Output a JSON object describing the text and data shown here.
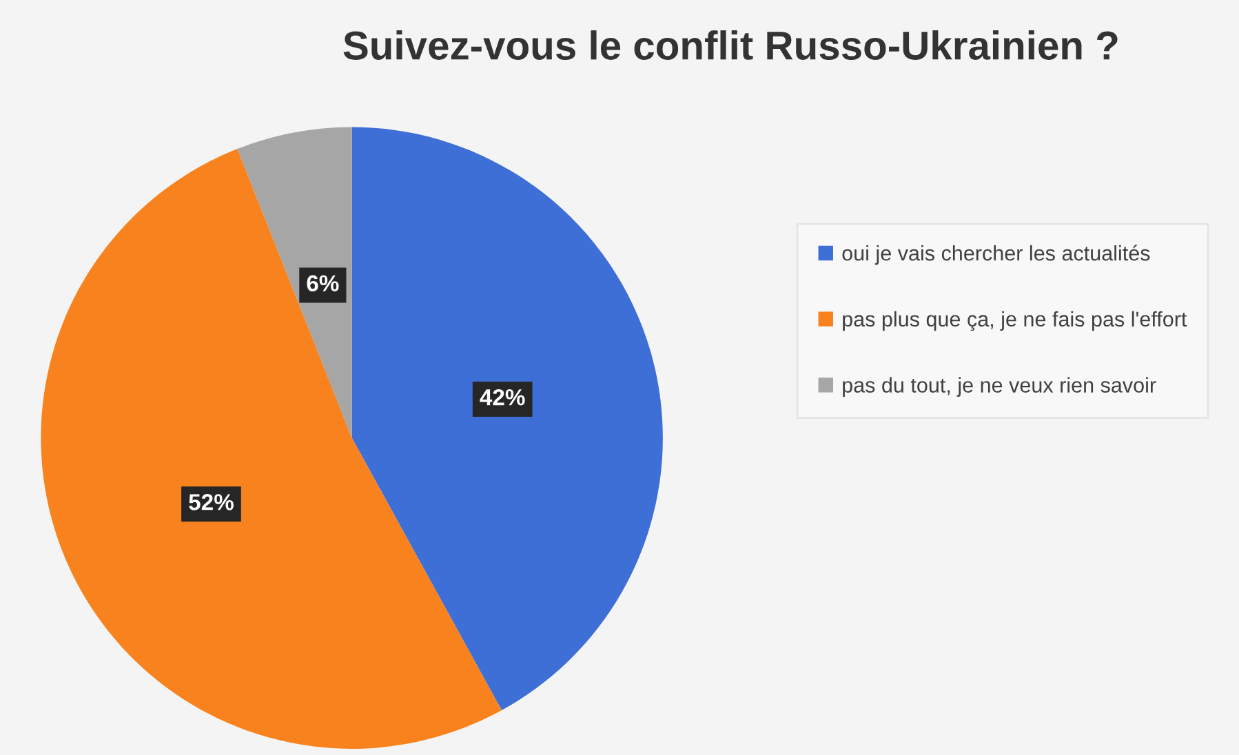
{
  "chart_data": {
    "type": "pie",
    "title": "Suivez-vous le conflit Russo-Ukrainien ?",
    "categories": [
      "oui je vais chercher les actualités",
      "pas plus que ça, je ne fais pas l'effort",
      "pas du tout, je ne veux rien savoir"
    ],
    "values": [
      42,
      52,
      6
    ],
    "colors": [
      "#3d6fd6",
      "#f7821e",
      "#a6a6a6"
    ],
    "value_labels": [
      "42%",
      "52%",
      "6%"
    ],
    "legend": "right"
  }
}
